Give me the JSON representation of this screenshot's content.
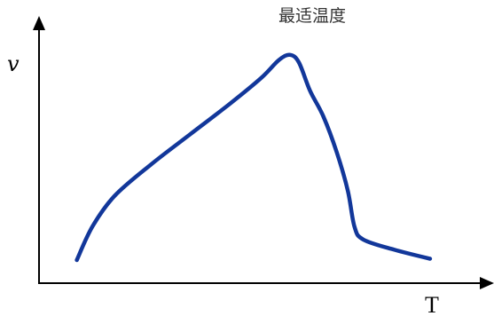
{
  "chart_data": {
    "type": "line",
    "title": "",
    "xlabel": "T",
    "ylabel": "v",
    "annotations": [
      {
        "text": "最适温度",
        "x": 56.5
      }
    ],
    "xlim": [
      0,
      100
    ],
    "ylim": [
      0,
      100
    ],
    "grid": false,
    "legend": "none",
    "series": [
      {
        "color": "#12379a",
        "points": [
          {
            "x": 8.5,
            "y": 9.0
          },
          {
            "x": 12.0,
            "y": 22.0
          },
          {
            "x": 17.0,
            "y": 34.0
          },
          {
            "x": 25.0,
            "y": 46.0
          },
          {
            "x": 34.0,
            "y": 58.0
          },
          {
            "x": 43.0,
            "y": 70.0
          },
          {
            "x": 50.0,
            "y": 80.0
          },
          {
            "x": 54.0,
            "y": 87.0
          },
          {
            "x": 56.5,
            "y": 89.0
          },
          {
            "x": 58.5,
            "y": 86.0
          },
          {
            "x": 61.0,
            "y": 75.0
          },
          {
            "x": 64.0,
            "y": 65.0
          },
          {
            "x": 67.0,
            "y": 51.0
          },
          {
            "x": 69.5,
            "y": 36.0
          },
          {
            "x": 71.0,
            "y": 22.0
          },
          {
            "x": 73.0,
            "y": 17.0
          },
          {
            "x": 80.0,
            "y": 13.0
          },
          {
            "x": 88.0,
            "y": 9.5
          }
        ]
      }
    ]
  }
}
